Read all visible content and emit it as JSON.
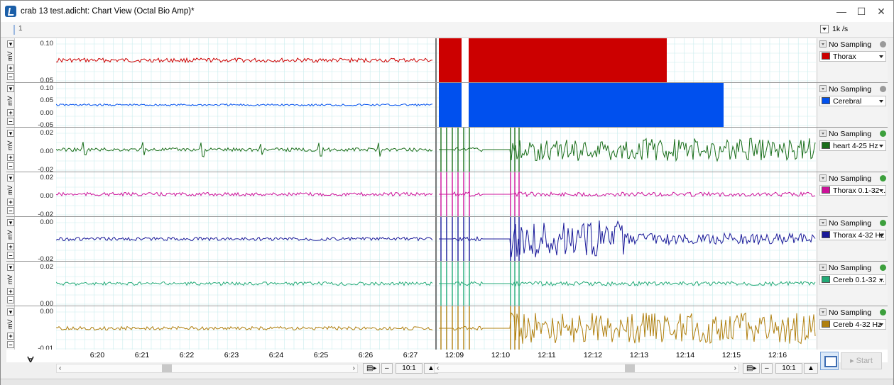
{
  "window": {
    "title": "crab 13 test.adicht: Chart View (Octal Bio Amp)*",
    "controls": {
      "minimize": "—",
      "maximize": "☐",
      "close": "✕"
    }
  },
  "toolbar": {
    "marker_label": "1",
    "sample_rate": "1k /s"
  },
  "sampling_label": "No Sampling",
  "unit": "mV",
  "channels": [
    {
      "name": "Thorax",
      "color": "#cc0000",
      "info_color": "#9a9a9a",
      "ticks": [
        "0.10",
        "0.05"
      ],
      "leftband": [
        0.035,
        0.06
      ],
      "rightfill": true
    },
    {
      "name": "Cerebral",
      "color": "#0050ee",
      "info_color": "#9a9a9a",
      "ticks": [
        "0.10",
        "0.05",
        "0.00",
        "-0.05"
      ],
      "rightfill": true
    },
    {
      "name": "heart 4-25 Hz",
      "color": "#1a6e1a",
      "info_color": "#3da03d",
      "ticks": [
        "0.02",
        "0.00",
        "-0.02"
      ]
    },
    {
      "name": "Thorax 0.1-32 ...",
      "color": "#cc1199",
      "info_color": "#3da03d",
      "ticks": [
        "0.02",
        "0.00",
        "-0.02"
      ]
    },
    {
      "name": "Thorax 4-32 Hz",
      "color": "#1a1a99",
      "info_color": "#3da03d",
      "ticks": [
        "0.00",
        "-0.02"
      ]
    },
    {
      "name": "Cereb 0.1-32 ...",
      "color": "#22aa77",
      "info_color": "#3da03d",
      "ticks": [
        "0.02",
        "0.00"
      ]
    },
    {
      "name": "Cereb 4-32 Hz",
      "color": "#b08010",
      "info_color": "#3da03d",
      "ticks": [
        "0.00",
        "-0.01"
      ]
    }
  ],
  "time_axis": {
    "left": [
      "6:20",
      "6:21",
      "6:22",
      "6:23",
      "6:24",
      "6:25",
      "6:26",
      "6:27"
    ],
    "right": [
      "12:09",
      "12:10",
      "12:11",
      "12:12",
      "12:13",
      "12:14",
      "12:15",
      "12:16"
    ]
  },
  "zoom": {
    "left": "10:1",
    "right": "10:1"
  },
  "buttons": {
    "start": "Start"
  }
}
